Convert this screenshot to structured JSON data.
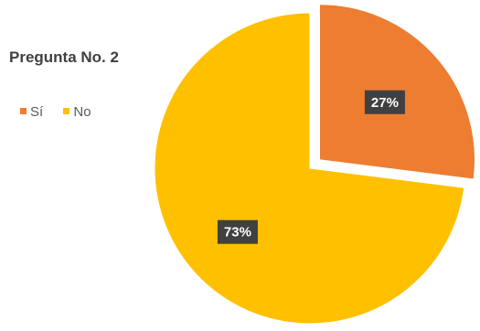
{
  "chart_data": {
    "type": "pie",
    "title": "Pregunta No. 2",
    "categories": [
      "Sí",
      "No"
    ],
    "values": [
      27,
      73
    ],
    "data_labels": [
      "27%",
      "73%"
    ],
    "colors": [
      "#ED7D31",
      "#FFC000"
    ],
    "exploded_slice": "Sí",
    "legend_position": "top-left",
    "start_angle": "12 o'clock, clockwise"
  }
}
